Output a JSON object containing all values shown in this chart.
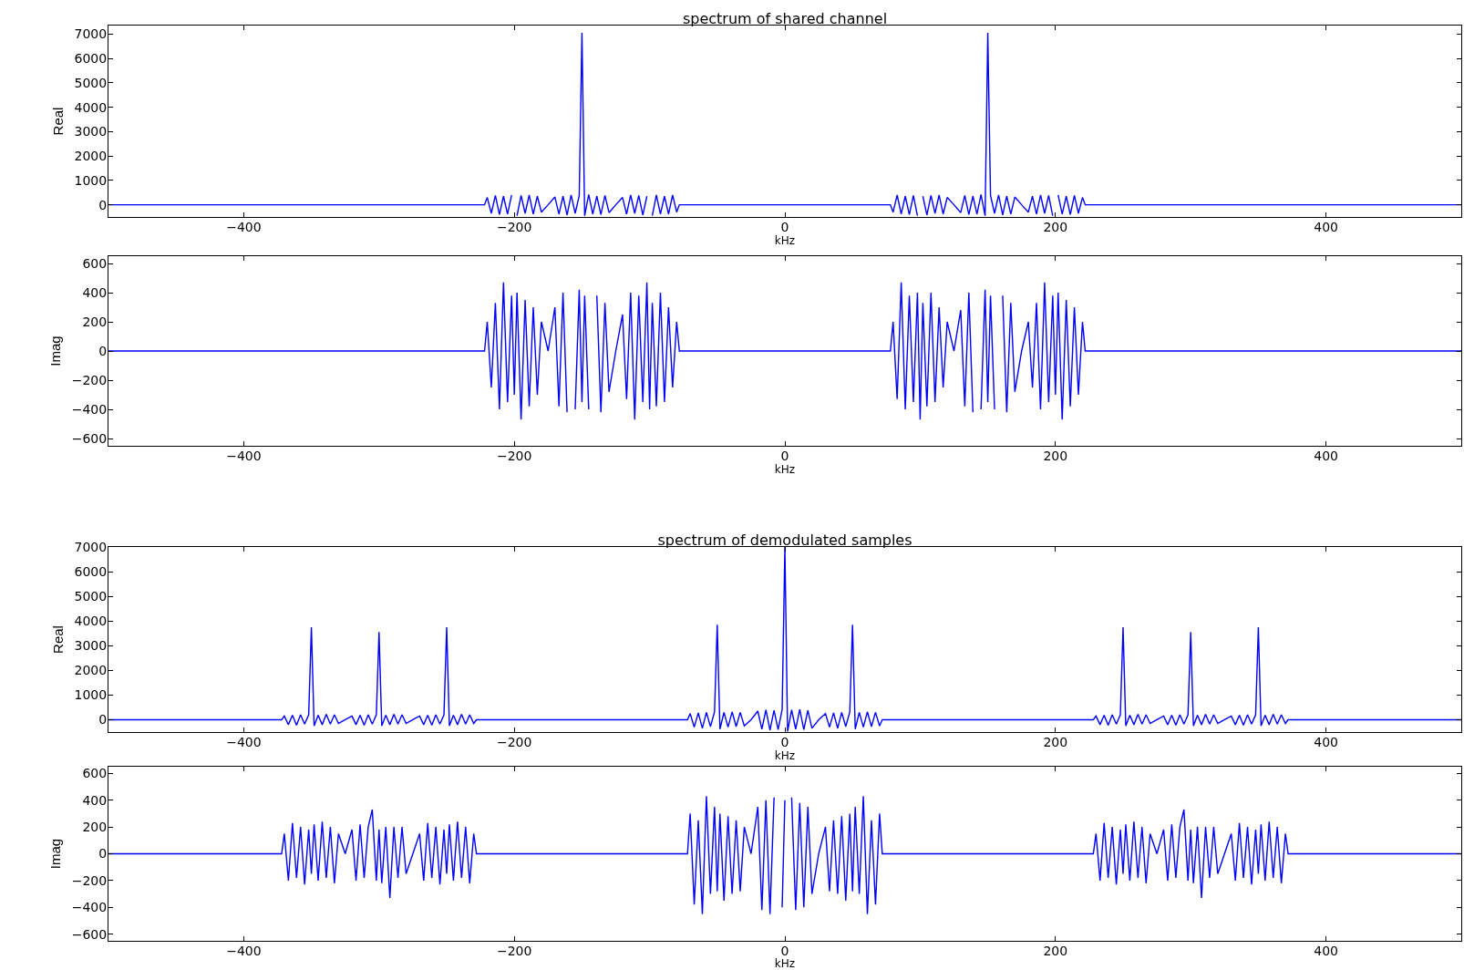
{
  "chart_data": [
    {
      "type": "line",
      "title": "spectrum of shared channel",
      "xlabel": "kHz",
      "ylabel": "Real",
      "color": "#0000ff",
      "grid": false,
      "xlim": [
        -500,
        500
      ],
      "xticks": [
        -400,
        -200,
        0,
        200,
        400
      ],
      "ylim": [
        -500,
        7350
      ],
      "yticks": [
        0,
        1000,
        2000,
        3000,
        4000,
        5000,
        6000,
        7000
      ],
      "x": [
        -500,
        -222,
        -220,
        -217,
        -214,
        -211,
        -208,
        -205,
        -202,
        -200,
        -198,
        -195,
        -192,
        -189,
        -186,
        -183,
        -180,
        -175,
        -170,
        -167,
        -164,
        -161,
        -158,
        -155,
        -152,
        -150,
        -148,
        -145,
        -142,
        -139,
        -136,
        -133,
        -130,
        -125,
        -120,
        -117,
        -114,
        -111,
        -108,
        -105,
        -102,
        -100,
        -98,
        -95,
        -92,
        -89,
        -86,
        -83,
        -80,
        -78,
        78,
        80,
        83,
        86,
        89,
        92,
        95,
        98,
        100,
        102,
        105,
        108,
        111,
        114,
        117,
        120,
        125,
        130,
        133,
        136,
        139,
        142,
        145,
        148,
        150,
        152,
        155,
        158,
        161,
        164,
        167,
        170,
        175,
        180,
        183,
        186,
        189,
        192,
        195,
        198,
        200,
        202,
        205,
        208,
        211,
        214,
        217,
        220,
        222,
        500
      ],
      "values": [
        0,
        0,
        300,
        -350,
        380,
        -400,
        350,
        -380,
        400,
        null,
        -450,
        380,
        -350,
        400,
        -380,
        350,
        -300,
        0,
        320,
        -380,
        350,
        -420,
        400,
        -350,
        380,
        7050,
        -450,
        420,
        -380,
        350,
        -400,
        380,
        -320,
        0,
        300,
        -380,
        400,
        -350,
        380,
        -420,
        350,
        null,
        -450,
        400,
        -380,
        350,
        -380,
        400,
        -300,
        0,
        0,
        -300,
        400,
        -380,
        350,
        -400,
        380,
        -450,
        null,
        350,
        -420,
        380,
        -350,
        400,
        -380,
        300,
        0,
        -320,
        380,
        -400,
        350,
        -380,
        420,
        -450,
        7050,
        380,
        -350,
        400,
        -420,
        350,
        -380,
        320,
        0,
        -300,
        350,
        -380,
        400,
        -350,
        380,
        -450,
        null,
        400,
        -380,
        350,
        -400,
        380,
        -350,
        300,
        0,
        0
      ]
    },
    {
      "type": "line",
      "xlabel": "kHz",
      "ylabel": "Imag",
      "color": "#0000ff",
      "grid": false,
      "xlim": [
        -500,
        500
      ],
      "xticks": [
        -400,
        -200,
        0,
        200,
        400
      ],
      "ylim": [
        -650,
        650
      ],
      "yticks": [
        -600,
        -400,
        -200,
        0,
        200,
        400,
        600
      ],
      "x": [
        -500,
        -222,
        -220,
        -217,
        -214,
        -211,
        -208,
        -205,
        -202,
        -200,
        -198,
        -195,
        -192,
        -189,
        -186,
        -183,
        -180,
        -175,
        -170,
        -167,
        -164,
        -161,
        -158,
        -155,
        -152,
        -150,
        -148,
        -145,
        -142,
        -139,
        -136,
        -133,
        -130,
        -125,
        -120,
        -117,
        -114,
        -111,
        -108,
        -105,
        -102,
        -100,
        -98,
        -95,
        -92,
        -89,
        -86,
        -83,
        -80,
        -78,
        78,
        80,
        83,
        86,
        89,
        92,
        95,
        98,
        100,
        102,
        105,
        108,
        111,
        114,
        117,
        120,
        125,
        130,
        133,
        136,
        139,
        142,
        145,
        148,
        150,
        152,
        155,
        158,
        161,
        164,
        167,
        170,
        175,
        180,
        183,
        186,
        189,
        192,
        195,
        198,
        200,
        202,
        205,
        208,
        211,
        214,
        217,
        220,
        222,
        500
      ],
      "values": [
        0,
        0,
        200,
        -250,
        330,
        -400,
        470,
        -350,
        380,
        -300,
        400,
        -470,
        350,
        -380,
        300,
        -300,
        200,
        0,
        300,
        -380,
        400,
        -420,
        null,
        -400,
        420,
        -350,
        380,
        -400,
        null,
        380,
        -420,
        330,
        -280,
        0,
        250,
        -330,
        400,
        -470,
        380,
        -350,
        470,
        -400,
        330,
        -380,
        400,
        -350,
        300,
        -250,
        200,
        0,
        0,
        200,
        -330,
        470,
        -400,
        380,
        -350,
        400,
        -470,
        330,
        -380,
        400,
        -350,
        300,
        -250,
        200,
        0,
        280,
        -380,
        400,
        -420,
        null,
        -400,
        420,
        -350,
        380,
        -400,
        null,
        380,
        -420,
        330,
        -280,
        0,
        200,
        -250,
        330,
        -400,
        470,
        -350,
        380,
        -300,
        400,
        -470,
        350,
        -380,
        300,
        -300,
        200,
        0,
        0
      ]
    },
    {
      "type": "line",
      "title": "spectrum of demodulated samples",
      "xlabel": "kHz",
      "ylabel": "Real",
      "color": "#0000ff",
      "grid": false,
      "xlim": [
        -500,
        500
      ],
      "xticks": [
        -400,
        -200,
        0,
        200,
        400
      ],
      "ylim": [
        -500,
        7000
      ],
      "yticks": [
        0,
        1000,
        2000,
        3000,
        4000,
        5000,
        6000,
        7000
      ],
      "x": [
        -500,
        -372,
        -370,
        -367,
        -364,
        -361,
        -358,
        -355,
        -352,
        -350,
        -348,
        -345,
        -342,
        -339,
        -336,
        -333,
        -330,
        -325,
        -320,
        -317,
        -314,
        -311,
        -308,
        -305,
        -302,
        -300,
        -298,
        -295,
        -292,
        -289,
        -286,
        -283,
        -280,
        -275,
        -270,
        -267,
        -264,
        -261,
        -258,
        -255,
        -252,
        -250,
        -248,
        -245,
        -242,
        -239,
        -236,
        -233,
        -230,
        -228,
        -72,
        -70,
        -67,
        -64,
        -61,
        -58,
        -55,
        -52,
        -50,
        -48,
        -45,
        -42,
        -39,
        -36,
        -33,
        -30,
        -25,
        -20,
        -17,
        -14,
        -11,
        -8,
        -5,
        -2,
        0,
        2,
        5,
        8,
        11,
        14,
        17,
        20,
        25,
        30,
        33,
        36,
        39,
        42,
        45,
        48,
        50,
        52,
        55,
        58,
        61,
        64,
        67,
        70,
        72,
        228,
        230,
        233,
        236,
        239,
        242,
        245,
        248,
        250,
        252,
        255,
        258,
        261,
        264,
        267,
        270,
        275,
        280,
        283,
        286,
        289,
        292,
        295,
        298,
        300,
        302,
        305,
        308,
        311,
        314,
        317,
        320,
        325,
        330,
        333,
        336,
        339,
        342,
        345,
        348,
        350,
        352,
        355,
        358,
        361,
        364,
        367,
        370,
        372,
        500
      ],
      "values": [
        0,
        0,
        150,
        -200,
        180,
        -220,
        200,
        -180,
        200,
        3750,
        -250,
        180,
        -200,
        220,
        -180,
        200,
        -150,
        0,
        150,
        -200,
        180,
        -220,
        200,
        -180,
        200,
        3550,
        -250,
        180,
        -200,
        220,
        -180,
        200,
        -150,
        0,
        150,
        -200,
        180,
        -220,
        200,
        -180,
        200,
        3750,
        -250,
        180,
        -200,
        220,
        -180,
        200,
        -150,
        0,
        0,
        250,
        -300,
        280,
        -350,
        300,
        -280,
        320,
        3850,
        -380,
        300,
        -300,
        320,
        -280,
        300,
        -250,
        0,
        350,
        -380,
        400,
        -420,
        380,
        -400,
        420,
        7000,
        -480,
        400,
        -380,
        420,
        -400,
        380,
        -350,
        0,
        250,
        -300,
        280,
        -350,
        300,
        -280,
        320,
        3850,
        -380,
        300,
        -300,
        320,
        -280,
        300,
        -250,
        0,
        0,
        150,
        -200,
        180,
        -220,
        200,
        -180,
        200,
        3750,
        -250,
        180,
        -200,
        220,
        -180,
        200,
        -150,
        0,
        150,
        -200,
        180,
        -220,
        200,
        -180,
        200,
        3550,
        -250,
        180,
        -200,
        220,
        -180,
        200,
        -150,
        0,
        150,
        -200,
        180,
        -220,
        200,
        -180,
        200,
        3750,
        -250,
        180,
        -200,
        220,
        -180,
        200,
        -150,
        0,
        0
      ]
    },
    {
      "type": "line",
      "xlabel": "kHz",
      "ylabel": "Imag",
      "color": "#0000ff",
      "grid": false,
      "xlim": [
        -500,
        500
      ],
      "xticks": [
        -400,
        -200,
        0,
        200,
        400
      ],
      "ylim": [
        -650,
        650
      ],
      "yticks": [
        -600,
        -400,
        -200,
        0,
        200,
        400,
        600
      ],
      "x": [
        -500,
        -372,
        -370,
        -367,
        -364,
        -361,
        -358,
        -355,
        -352,
        -350,
        -348,
        -345,
        -342,
        -339,
        -336,
        -333,
        -330,
        -325,
        -320,
        -317,
        -314,
        -311,
        -308,
        -305,
        -302,
        -300,
        -298,
        -295,
        -292,
        -289,
        -286,
        -283,
        -280,
        -275,
        -270,
        -267,
        -264,
        -261,
        -258,
        -255,
        -252,
        -250,
        -248,
        -245,
        -242,
        -239,
        -236,
        -233,
        -230,
        -228,
        -72,
        -70,
        -67,
        -64,
        -61,
        -58,
        -55,
        -52,
        -50,
        -48,
        -45,
        -42,
        -39,
        -36,
        -33,
        -30,
        -25,
        -20,
        -17,
        -14,
        -11,
        -8,
        -5,
        -2,
        0,
        2,
        5,
        8,
        11,
        14,
        17,
        20,
        25,
        30,
        33,
        36,
        39,
        42,
        45,
        48,
        50,
        52,
        55,
        58,
        61,
        64,
        67,
        70,
        72,
        228,
        230,
        233,
        236,
        239,
        242,
        245,
        248,
        250,
        252,
        255,
        258,
        261,
        264,
        267,
        270,
        275,
        280,
        283,
        286,
        289,
        292,
        295,
        298,
        300,
        302,
        305,
        308,
        311,
        314,
        317,
        320,
        325,
        330,
        333,
        336,
        339,
        342,
        345,
        348,
        350,
        352,
        355,
        358,
        361,
        364,
        367,
        370,
        372,
        500
      ],
      "values": [
        0,
        0,
        150,
        -200,
        230,
        -180,
        200,
        -230,
        180,
        -150,
        220,
        -200,
        240,
        -180,
        200,
        -220,
        150,
        0,
        180,
        -200,
        220,
        -180,
        200,
        330,
        -200,
        180,
        -220,
        200,
        -330,
        200,
        -180,
        200,
        -150,
        0,
        150,
        -200,
        230,
        -180,
        200,
        -230,
        180,
        -150,
        220,
        -200,
        240,
        -180,
        200,
        -220,
        150,
        0,
        0,
        300,
        -380,
        250,
        -450,
        430,
        -300,
        350,
        -280,
        300,
        -350,
        280,
        -300,
        250,
        -280,
        200,
        0,
        350,
        -420,
        400,
        -450,
        420,
        null,
        -400,
        400,
        null,
        420,
        -420,
        380,
        -400,
        350,
        -300,
        0,
        200,
        -280,
        250,
        -300,
        280,
        -350,
        300,
        -280,
        350,
        -300,
        430,
        -450,
        250,
        -380,
        300,
        0,
        0,
        150,
        -200,
        230,
        -180,
        200,
        -230,
        180,
        -150,
        220,
        -200,
        240,
        -180,
        200,
        -220,
        150,
        0,
        180,
        -200,
        220,
        -180,
        200,
        330,
        -200,
        180,
        -220,
        200,
        -330,
        200,
        -180,
        200,
        -150,
        0,
        150,
        -200,
        230,
        -180,
        200,
        -230,
        180,
        -150,
        220,
        -200,
        240,
        -180,
        200,
        -220,
        150,
        0,
        0
      ]
    }
  ]
}
